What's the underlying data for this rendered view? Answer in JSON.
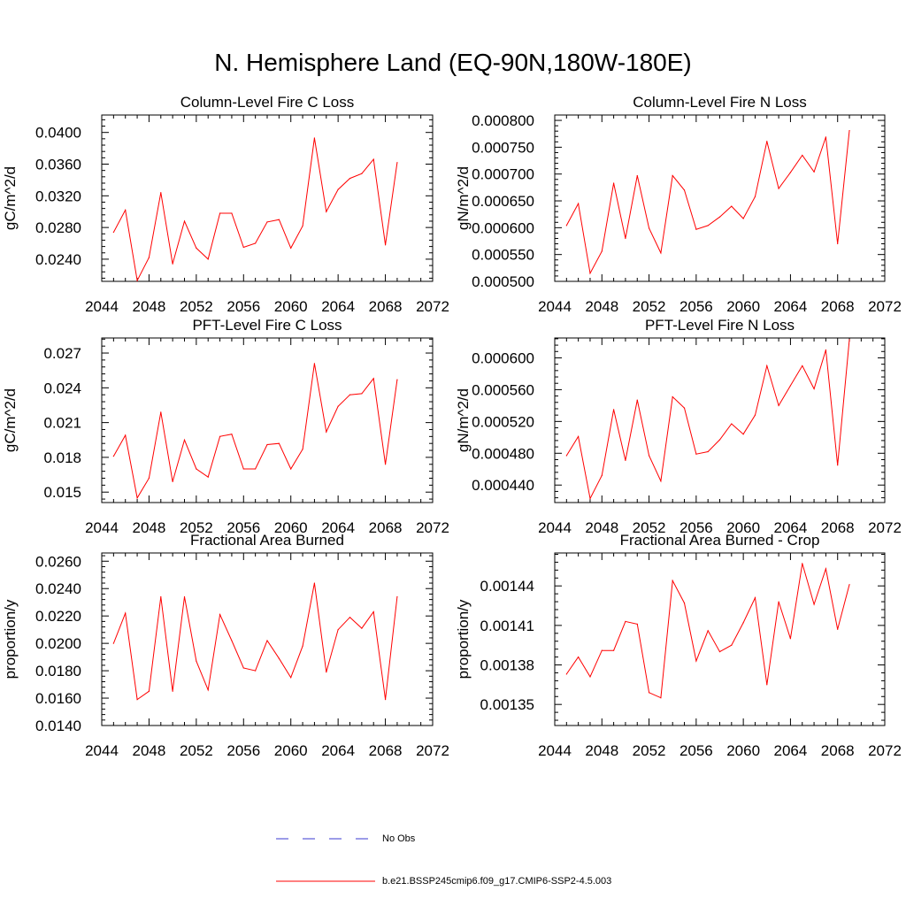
{
  "figure_title": "N. Hemisphere Land (EQ-90N,180W-180E)",
  "legend": {
    "obs_label": "No Obs",
    "model_label": "b.e21.BSSP245cmip6.f09_g17.CMIP6-SSP2-4.5.003",
    "obs_color": "#3a3ad0",
    "model_color": "#ff0000"
  },
  "chart_data": [
    {
      "type": "line",
      "title": "Column-Level Fire C Loss",
      "xlabel": "",
      "ylabel": "gC/m^2/d",
      "xlim": [
        2044,
        2072
      ],
      "ylim": [
        0.0212,
        0.0422
      ],
      "x_ticks": [
        2044,
        2048,
        2052,
        2056,
        2060,
        2064,
        2068,
        2072
      ],
      "x_tick_labels": [
        "2044",
        "2048",
        "2052",
        "2056",
        "2060",
        "2064",
        "2068",
        "2072"
      ],
      "y_ticks": [
        0.024,
        0.028,
        0.032,
        0.036,
        0.04
      ],
      "y_tick_labels": [
        "0.0240",
        "0.0280",
        "0.0320",
        "0.0360",
        "0.0400"
      ],
      "x": [
        2045,
        2046,
        2047,
        2048,
        2049,
        2050,
        2051,
        2052,
        2053,
        2054,
        2055,
        2056,
        2057,
        2058,
        2059,
        2060,
        2061,
        2062,
        2063,
        2064,
        2065,
        2066,
        2067,
        2068,
        2069
      ],
      "series": [
        {
          "name": "b.e21.BSSP245cmip6.f09_g17.CMIP6-SSP2-4.5.003",
          "values": [
            0.0274,
            0.0302,
            0.0213,
            0.0242,
            0.0324,
            0.0234,
            0.0288,
            0.0254,
            0.024,
            0.0298,
            0.0298,
            0.0255,
            0.026,
            0.0287,
            0.029,
            0.0254,
            0.0282,
            0.0393,
            0.03,
            0.0328,
            0.0342,
            0.0348,
            0.0366,
            0.0258,
            0.0362
          ]
        }
      ]
    },
    {
      "type": "line",
      "title": "Column-Level Fire N Loss",
      "xlabel": "",
      "ylabel": "gN/m^2/d",
      "xlim": [
        2044,
        2072
      ],
      "ylim": [
        0.0005,
        0.00081
      ],
      "x_ticks": [
        2044,
        2048,
        2052,
        2056,
        2060,
        2064,
        2068,
        2072
      ],
      "x_tick_labels": [
        "2044",
        "2048",
        "2052",
        "2056",
        "2060",
        "2064",
        "2068",
        "2072"
      ],
      "y_ticks": [
        0.0005,
        0.00055,
        0.0006,
        0.00065,
        0.0007,
        0.00075,
        0.0008
      ],
      "y_tick_labels": [
        "0.000500",
        "0.000550",
        "0.000600",
        "0.000650",
        "0.000700",
        "0.000750",
        "0.000800"
      ],
      "x": [
        2045,
        2046,
        2047,
        2048,
        2049,
        2050,
        2051,
        2052,
        2053,
        2054,
        2055,
        2056,
        2057,
        2058,
        2059,
        2060,
        2061,
        2062,
        2063,
        2064,
        2065,
        2066,
        2067,
        2068,
        2069
      ],
      "series": [
        {
          "name": "b.e21.BSSP245cmip6.f09_g17.CMIP6-SSP2-4.5.003",
          "values": [
            0.000604,
            0.000645,
            0.000515,
            0.000556,
            0.000683,
            0.00058,
            0.000697,
            0.000599,
            0.000553,
            0.000697,
            0.00067,
            0.000597,
            0.000604,
            0.00062,
            0.00064,
            0.000617,
            0.000658,
            0.000761,
            0.000673,
            0.000703,
            0.000735,
            0.000704,
            0.000769,
            0.00057,
            0.000781
          ]
        }
      ]
    },
    {
      "type": "line",
      "title": "PFT-Level Fire C Loss",
      "xlabel": "",
      "ylabel": "gC/m^2/d",
      "xlim": [
        2044,
        2072
      ],
      "ylim": [
        0.0141,
        0.0283
      ],
      "x_ticks": [
        2044,
        2048,
        2052,
        2056,
        2060,
        2064,
        2068,
        2072
      ],
      "x_tick_labels": [
        "2044",
        "2048",
        "2052",
        "2056",
        "2060",
        "2064",
        "2068",
        "2072"
      ],
      "y_ticks": [
        0.015,
        0.018,
        0.021,
        0.024,
        0.027
      ],
      "y_tick_labels": [
        "0.015",
        "0.018",
        "0.021",
        "0.024",
        "0.027"
      ],
      "x": [
        2045,
        2046,
        2047,
        2048,
        2049,
        2050,
        2051,
        2052,
        2053,
        2054,
        2055,
        2056,
        2057,
        2058,
        2059,
        2060,
        2061,
        2062,
        2063,
        2064,
        2065,
        2066,
        2067,
        2068,
        2069
      ],
      "series": [
        {
          "name": "b.e21.BSSP245cmip6.f09_g17.CMIP6-SSP2-4.5.003",
          "values": [
            0.0181,
            0.0199,
            0.0145,
            0.0162,
            0.0219,
            0.0159,
            0.0195,
            0.017,
            0.0163,
            0.0198,
            0.02,
            0.017,
            0.017,
            0.0191,
            0.0192,
            0.017,
            0.0187,
            0.0261,
            0.0202,
            0.0224,
            0.0234,
            0.0235,
            0.0248,
            0.0174,
            0.0247
          ]
        }
      ]
    },
    {
      "type": "line",
      "title": "PFT-Level Fire N Loss",
      "xlabel": "",
      "ylabel": "gN/m^2/d",
      "xlim": [
        2044,
        2072
      ],
      "ylim": [
        0.000418,
        0.000625
      ],
      "x_ticks": [
        2044,
        2048,
        2052,
        2056,
        2060,
        2064,
        2068,
        2072
      ],
      "x_tick_labels": [
        "2044",
        "2048",
        "2052",
        "2056",
        "2060",
        "2064",
        "2068",
        "2072"
      ],
      "y_ticks": [
        0.00044,
        0.00048,
        0.00052,
        0.00056,
        0.0006
      ],
      "y_tick_labels": [
        "0.000440",
        "0.000480",
        "0.000520",
        "0.000560",
        "0.000600"
      ],
      "x": [
        2045,
        2046,
        2047,
        2048,
        2049,
        2050,
        2051,
        2052,
        2053,
        2054,
        2055,
        2056,
        2057,
        2058,
        2059,
        2060,
        2061,
        2062,
        2063,
        2064,
        2065,
        2066,
        2067,
        2068,
        2069
      ],
      "series": [
        {
          "name": "b.e21.BSSP245cmip6.f09_g17.CMIP6-SSP2-4.5.003",
          "values": [
            0.000477,
            0.000501,
            0.000423,
            0.000452,
            0.000535,
            0.000471,
            0.000547,
            0.000477,
            0.000445,
            0.000551,
            0.000537,
            0.000479,
            0.000482,
            0.000497,
            0.000517,
            0.000504,
            0.000528,
            0.00059,
            0.00054,
            0.000565,
            0.00059,
            0.000561,
            0.00061,
            0.000465,
            0.000623
          ]
        }
      ]
    },
    {
      "type": "line",
      "title": "Fractional Area Burned",
      "xlabel": "",
      "ylabel": "proportion/y",
      "xlim": [
        2044,
        2072
      ],
      "ylim": [
        0.014,
        0.0266
      ],
      "x_ticks": [
        2044,
        2048,
        2052,
        2056,
        2060,
        2064,
        2068,
        2072
      ],
      "x_tick_labels": [
        "2044",
        "2048",
        "2052",
        "2056",
        "2060",
        "2064",
        "2068",
        "2072"
      ],
      "y_ticks": [
        0.014,
        0.016,
        0.018,
        0.02,
        0.022,
        0.024,
        0.026
      ],
      "y_tick_labels": [
        "0.0140",
        "0.0160",
        "0.0180",
        "0.0200",
        "0.0220",
        "0.0240",
        "0.0260"
      ],
      "x": [
        2045,
        2046,
        2047,
        2048,
        2049,
        2050,
        2051,
        2052,
        2053,
        2054,
        2055,
        2056,
        2057,
        2058,
        2059,
        2060,
        2061,
        2062,
        2063,
        2064,
        2065,
        2066,
        2067,
        2068,
        2069
      ],
      "series": [
        {
          "name": "b.e21.BSSP245cmip6.f09_g17.CMIP6-SSP2-4.5.003",
          "values": [
            0.02,
            0.0222,
            0.0159,
            0.0165,
            0.0234,
            0.0165,
            0.0234,
            0.0187,
            0.0166,
            0.0221,
            0.0202,
            0.0182,
            0.018,
            0.0202,
            0.0189,
            0.0175,
            0.0198,
            0.0244,
            0.0179,
            0.021,
            0.0219,
            0.0211,
            0.0223,
            0.0159,
            0.0234
          ]
        }
      ]
    },
    {
      "type": "line",
      "title": "Fractional Area Burned - Crop",
      "xlabel": "",
      "ylabel": "proportion/y",
      "xlim": [
        2044,
        2072
      ],
      "ylim": [
        0.001334,
        0.001465
      ],
      "x_ticks": [
        2044,
        2048,
        2052,
        2056,
        2060,
        2064,
        2068,
        2072
      ],
      "x_tick_labels": [
        "2044",
        "2048",
        "2052",
        "2056",
        "2060",
        "2064",
        "2068",
        "2072"
      ],
      "y_ticks": [
        0.00135,
        0.00138,
        0.00141,
        0.00144
      ],
      "y_tick_labels": [
        "0.00135",
        "0.00138",
        "0.00141",
        "0.00144"
      ],
      "x": [
        2045,
        2046,
        2047,
        2048,
        2049,
        2050,
        2051,
        2052,
        2053,
        2054,
        2055,
        2056,
        2057,
        2058,
        2059,
        2060,
        2061,
        2062,
        2063,
        2064,
        2065,
        2066,
        2067,
        2068,
        2069
      ],
      "series": [
        {
          "name": "b.e21.BSSP245cmip6.f09_g17.CMIP6-SSP2-4.5.003",
          "values": [
            0.001373,
            0.001386,
            0.001371,
            0.001391,
            0.001391,
            0.001413,
            0.001411,
            0.001359,
            0.001355,
            0.001444,
            0.001427,
            0.001383,
            0.001406,
            0.00139,
            0.001395,
            0.001412,
            0.001431,
            0.001365,
            0.001428,
            0.0014,
            0.001457,
            0.001426,
            0.001453,
            0.001407,
            0.001441
          ]
        }
      ]
    }
  ]
}
